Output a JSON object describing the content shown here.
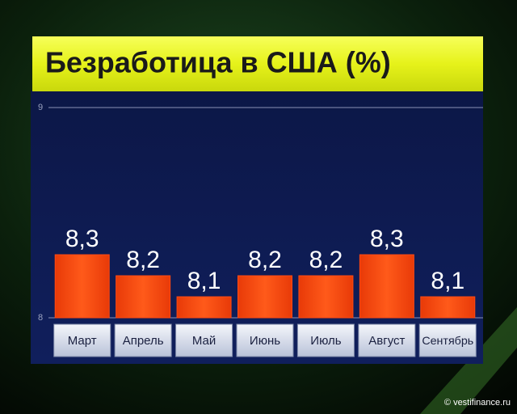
{
  "chart_data": {
    "type": "bar",
    "title": "Безработица в США (%)",
    "categories": [
      "Март",
      "Апрель",
      "Май",
      "Июнь",
      "Июль",
      "Август",
      "Сентябрь"
    ],
    "values": [
      8.3,
      8.2,
      8.1,
      8.2,
      8.2,
      8.3,
      8.1
    ],
    "value_labels": [
      "8,3",
      "8,2",
      "8,1",
      "8,2",
      "8,2",
      "8,3",
      "8,1"
    ],
    "color": "#ff4a12",
    "ylim": [
      8,
      9
    ],
    "yticks": [
      8,
      9
    ],
    "grid": true,
    "watermark": "© vestifinance.ru"
  }
}
